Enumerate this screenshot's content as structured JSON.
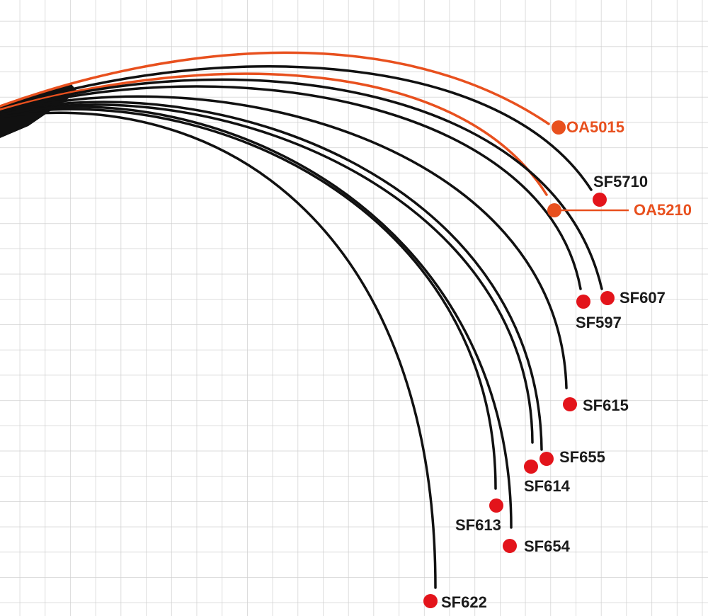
{
  "rods": [
    {
      "name": "OA5015",
      "color": "#e8501e"
    },
    {
      "name": "SF5710",
      "color": "#111111"
    },
    {
      "name": "OA5210",
      "color": "#e8501e"
    },
    {
      "name": "SF607",
      "color": "#111111"
    },
    {
      "name": "SF597",
      "color": "#111111"
    },
    {
      "name": "SF615",
      "color": "#111111"
    },
    {
      "name": "SF655",
      "color": "#111111"
    },
    {
      "name": "SF614",
      "color": "#111111"
    },
    {
      "name": "SF613",
      "color": "#111111"
    },
    {
      "name": "SF654",
      "color": "#111111"
    },
    {
      "name": "SF622",
      "color": "#111111"
    }
  ]
}
